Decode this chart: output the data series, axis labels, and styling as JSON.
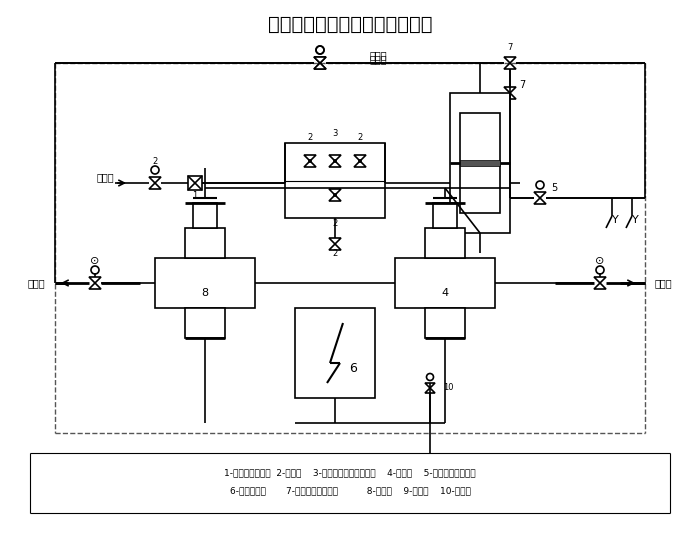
{
  "title": "高压加热器给水保护系统原理图",
  "title_fontsize": 15,
  "legend_line1": "1-滤网（过滤器）  2-截止阀    3-电磁阀（快速启闭阀）    4-入口阀    5-截止阀（放水阀）",
  "legend_line2": "6-高压加热器       7-截止阀（放气阀）          8-出口阀    9-节流圈    10-注水阀",
  "bg_color": "#ffffff",
  "line_color": "#000000",
  "font_color": "#000000",
  "dashed_color": "#555555"
}
